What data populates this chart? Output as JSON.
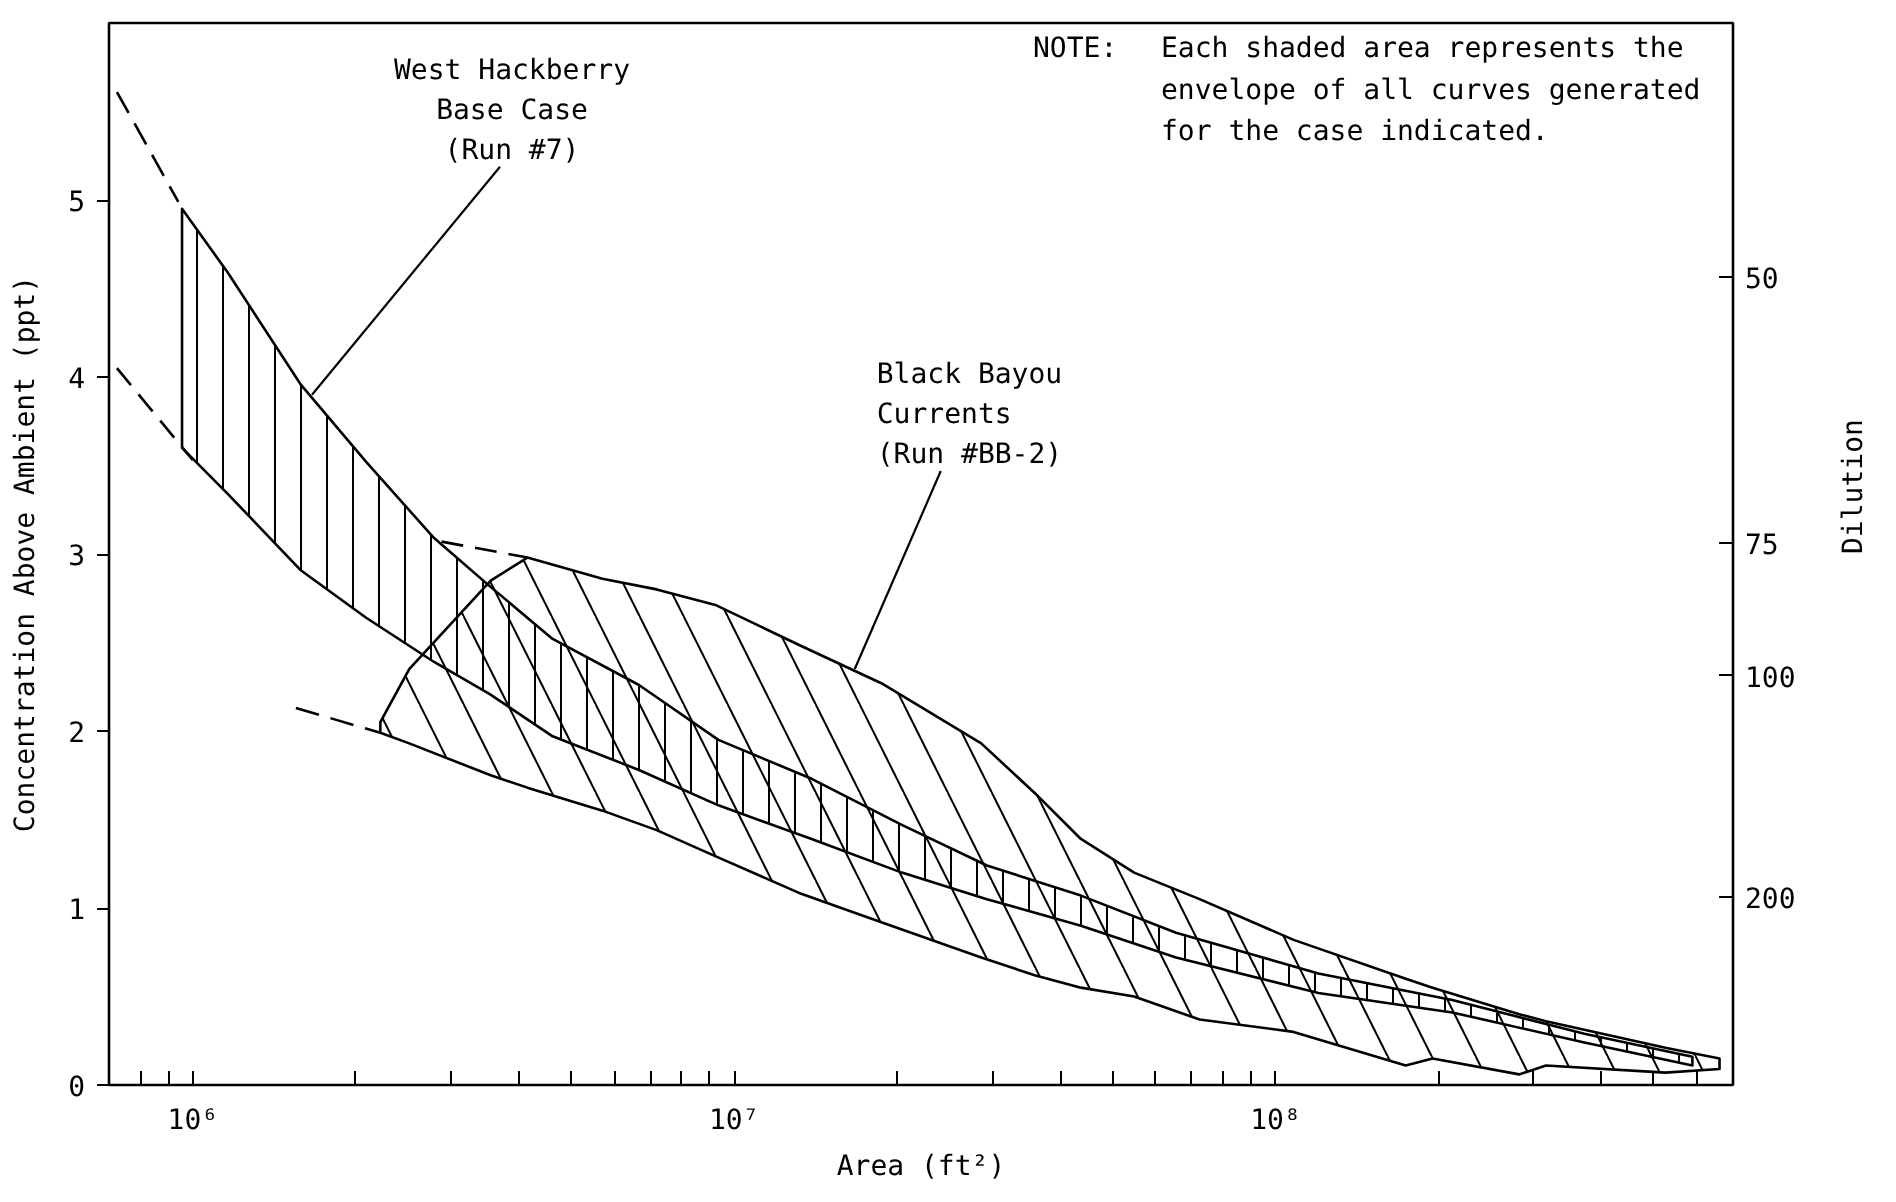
{
  "chart_data": {
    "type": "line",
    "xlabel": "Area (ft²)",
    "ylabel": "Concentration Above Ambient (ppt)",
    "y2label": "Dilution",
    "log": "x",
    "xlim": [
      700000,
      700000000
    ],
    "xticks": [
      {
        "value": 800000,
        "label": null
      },
      {
        "value": 900000,
        "label": null
      },
      {
        "value": 1000000,
        "label": "10⁶"
      },
      {
        "value": 2000000,
        "label": null
      },
      {
        "value": 3000000,
        "label": null
      },
      {
        "value": 4000000,
        "label": null
      },
      {
        "value": 5000000,
        "label": null
      },
      {
        "value": 6000000,
        "label": null
      },
      {
        "value": 7000000,
        "label": null
      },
      {
        "value": 8000000,
        "label": null
      },
      {
        "value": 9000000,
        "label": null
      },
      {
        "value": 10000000,
        "label": "10⁷"
      },
      {
        "value": 20000000,
        "label": null
      },
      {
        "value": 30000000,
        "label": null
      },
      {
        "value": 40000000,
        "label": null
      },
      {
        "value": 50000000,
        "label": null
      },
      {
        "value": 60000000,
        "label": null
      },
      {
        "value": 70000000,
        "label": null
      },
      {
        "value": 80000000,
        "label": null
      },
      {
        "value": 90000000,
        "label": null
      },
      {
        "value": 100000000,
        "label": "10⁸"
      },
      {
        "value": 200000000,
        "label": null
      },
      {
        "value": 300000000,
        "label": null
      },
      {
        "value": 400000000,
        "label": null
      },
      {
        "value": 500000000,
        "label": null
      },
      {
        "value": 600000000,
        "label": null
      }
    ],
    "ylim": [
      0,
      6
    ],
    "yticks": [
      0,
      1,
      2,
      3,
      4,
      5
    ],
    "y2_categories": [
      null,
      null,
      null,
      null,
      null,
      null,
      null,
      null,
      null,
      null,
      null,
      "50",
      null,
      null,
      null,
      null,
      null,
      null,
      null,
      null,
      null,
      null,
      null,
      "75",
      null,
      null,
      null,
      null,
      null,
      "100",
      null,
      null,
      null,
      null,
      null,
      null,
      null,
      null,
      null,
      "200",
      null,
      null,
      null,
      null,
      null,
      null,
      null,
      null
    ],
    "series": [
      {
        "color": "#000000",
        "x": [
          2220000,
          2510000,
          3550000,
          4150000,
          5710000,
          7190000,
          9270000,
          13300000,
          18700000,
          28600000,
          35900000,
          43700000,
          54800000,
          72400000,
          108000000,
          174000000,
          195000000,
          282000000,
          316000000,
          525000000,
          661000000
        ],
        "values": [
          null,
          null,
          null,
          null,
          null,
          null,
          null,
          null,
          null,
          null,
          null,
          null,
          null,
          null,
          null,
          null,
          null,
          null,
          null,
          null,
          null
        ],
        "upper": [
          2.05,
          2.35,
          2.85,
          2.98,
          2.86,
          2.8,
          2.71,
          2.48,
          2.27,
          1.93,
          1.65,
          1.39,
          1.2,
          1.05,
          0.82,
          0.6,
          0.55,
          0.4,
          0.36,
          0.21,
          0.15
        ],
        "lower": [
          1.99,
          1.93,
          1.75,
          1.68,
          1.55,
          1.44,
          1.29,
          1.08,
          0.92,
          0.72,
          0.62,
          0.55,
          0.5,
          0.37,
          0.3,
          0.11,
          0.15,
          0.06,
          0.11,
          0.07,
          0.09
        ]
      },
      {
        "color": "#000000",
        "x": [
          955000,
          1160000,
          1580000,
          2090000,
          2790000,
          3530000,
          4620000,
          6670000,
          9350000,
          13900000,
          20400000,
          29300000,
          43700000,
          65500000,
          120000000,
          212000000,
          372000000,
          589000000
        ],
        "values": [
          null,
          null,
          null,
          null,
          null,
          null,
          null,
          null,
          null,
          null,
          null,
          null,
          null,
          null,
          null,
          null,
          null,
          null
        ],
        "upper": [
          4.95,
          4.59,
          3.96,
          3.52,
          3.09,
          2.82,
          2.52,
          2.26,
          1.95,
          1.73,
          1.47,
          1.24,
          1.07,
          0.86,
          0.63,
          0.48,
          0.29,
          0.16
        ],
        "lower": [
          3.6,
          3.34,
          2.91,
          2.64,
          2.39,
          2.21,
          1.97,
          1.78,
          1.58,
          1.39,
          1.2,
          1.05,
          0.9,
          0.72,
          0.52,
          0.41,
          0.24,
          0.11
        ]
      },
      {
        "color": "#000000",
        "line_style": "dashed",
        "x": [
          724000,
          940000
        ],
        "values": [
          5.61,
          4.99
        ]
      },
      {
        "color": "#000000",
        "line_style": "dashed",
        "x": [
          724000,
          1000000
        ],
        "values": [
          4.05,
          3.53
        ]
      },
      {
        "color": "#000000",
        "line_style": "dashed",
        "x": [
          1550000,
          2220000
        ],
        "values": [
          2.13,
          1.99
        ]
      },
      {
        "color": "#000000",
        "line_style": "dashed",
        "x": [
          2880000,
          4150000
        ],
        "values": [
          3.07,
          2.98
        ]
      }
    ],
    "annotations": [
      {
        "text": "West Hackberry\nBase Case\n(Run #7)",
        "x": 1660000,
        "y": 3.9
      },
      {
        "text": "Black Bayou\nCurrents\n(Run #BB-2)",
        "x": 16700000,
        "y": 2.35
      },
      "NOTE: Each shaded area represents the envelope of all curves generated for the case indicated."
    ]
  }
}
